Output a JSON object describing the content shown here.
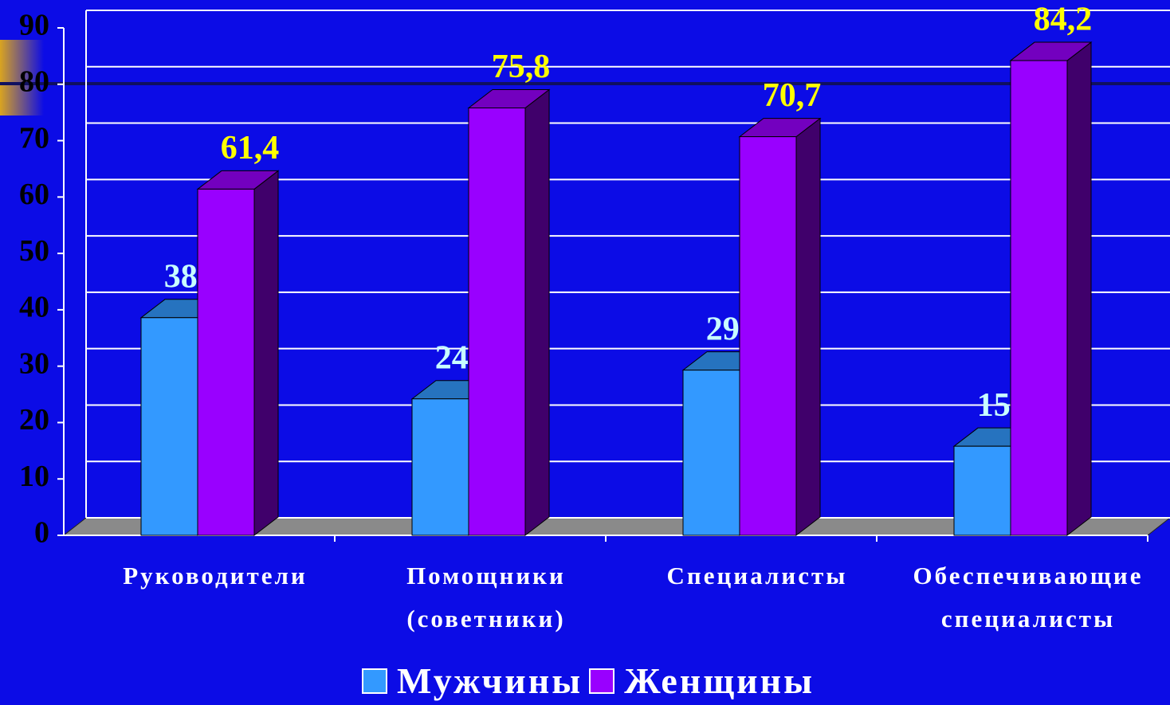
{
  "chart_data": {
    "type": "bar3d",
    "categories": [
      "Руководители",
      "Помощники (советники)",
      "Специалисты",
      "Обеспечивающие специалисты"
    ],
    "series": [
      {
        "name": "Мужчины",
        "color": "#3399ff",
        "values": [
          38.6,
          24.2,
          29.3,
          15.8
        ],
        "value_labels": [
          "38,6",
          "24,2",
          "29,3",
          "15,8"
        ],
        "label_color": "#c8ffff"
      },
      {
        "name": "Женщины",
        "color": "#9900ff",
        "values": [
          61.4,
          75.8,
          70.7,
          84.2
        ],
        "value_labels": [
          "61,4",
          "75,8",
          "70,7",
          "84,2"
        ],
        "label_color": "#ffff00"
      }
    ],
    "ylim": [
      0,
      90
    ],
    "yticks": [
      0,
      10,
      20,
      30,
      40,
      50,
      60,
      70,
      80,
      90
    ],
    "grid": true
  }
}
